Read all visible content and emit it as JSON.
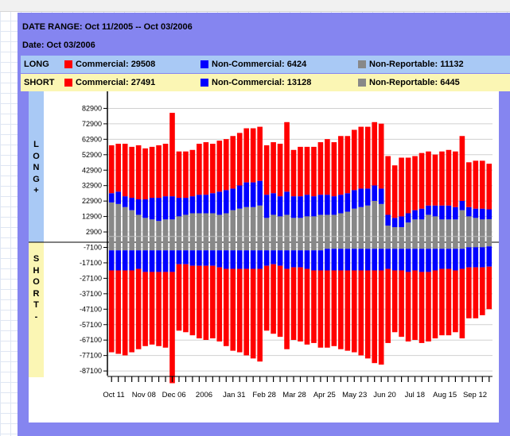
{
  "header": {
    "date_range": "DATE RANGE: Oct 11/2005 -- Oct 03/2006",
    "date": "Date: Oct 03/2006"
  },
  "summary": {
    "long": {
      "label": "LONG",
      "commercial": "Commercial: 29508",
      "non_commercial": "Non-Commercial: 6424",
      "non_reportable": "Non-Reportable: 11132"
    },
    "short": {
      "label": "SHORT",
      "commercial": "Commercial: 27491",
      "non_commercial": "Non-Commercial: 13128",
      "non_reportable": "Non-Reportable: 6445"
    }
  },
  "side_labels": {
    "long": "L\nO\nN\nG\n+",
    "short": "S\nH\nO\nR\nT\n-"
  },
  "colors": {
    "commercial": "#ff0000",
    "non_commercial": "#0000ff",
    "non_reportable": "#888888",
    "long_band": "#a9c9f5",
    "short_band": "#fbf6b4",
    "panel": "#8585f0"
  },
  "chart_data": {
    "type": "bar",
    "stacked": true,
    "grid": true,
    "ylim": [
      -89100,
      92900
    ],
    "y_ticks": [
      82900,
      72900,
      62900,
      52900,
      42900,
      32900,
      22900,
      12900,
      2900,
      -7100,
      -17100,
      -27100,
      -37100,
      -47100,
      -57100,
      -67100,
      -77100,
      -87100
    ],
    "x_tick_labels": [
      "Oct 11",
      "Nov 08",
      "Dec 06",
      "2006",
      "Jan 31",
      "Feb 28",
      "Mar 28",
      "Apr 25",
      "May 23",
      "Jun 20",
      "Jul 18",
      "Aug 15",
      "Sep 12"
    ],
    "series": [
      {
        "name": "Commercial",
        "side": "long",
        "values": [
          31000,
          31000,
          34000,
          33000,
          35000,
          33000,
          33000,
          34000,
          34000,
          54000,
          30000,
          30000,
          30000,
          33000,
          34000,
          32000,
          33000,
          33000,
          34000,
          34000,
          35000,
          35000,
          35000,
          32000,
          33000,
          34000,
          45000,
          30000,
          32000,
          31000,
          32000,
          34000,
          36000,
          35000,
          38000,
          37000,
          39000,
          40000,
          40000,
          41000,
          42000,
          38000,
          34000,
          38000,
          36000,
          35000,
          36000,
          35000,
          33000,
          35000,
          36000,
          36000,
          42000,
          29000,
          31000,
          31000,
          29508
        ]
      },
      {
        "name": "Non-Commercial",
        "side": "long",
        "values": [
          6000,
          8000,
          7000,
          8000,
          10000,
          12000,
          14000,
          15000,
          15000,
          15000,
          12000,
          11000,
          11000,
          12000,
          12000,
          13000,
          15000,
          15000,
          14000,
          15000,
          16000,
          16000,
          16000,
          15000,
          14000,
          13000,
          15000,
          14000,
          14000,
          14000,
          13000,
          13000,
          13000,
          12000,
          12000,
          12000,
          12000,
          12000,
          11000,
          10000,
          10000,
          7000,
          6000,
          7000,
          6000,
          6000,
          7000,
          6000,
          7000,
          9000,
          9000,
          8000,
          6000,
          6000,
          6000,
          7000,
          6424
        ]
      },
      {
        "name": "Non-Reportable",
        "side": "long",
        "values": [
          22000,
          21000,
          19000,
          17000,
          14000,
          12000,
          11000,
          10000,
          11000,
          11000,
          13000,
          14000,
          15000,
          15000,
          15000,
          15000,
          14000,
          15000,
          17000,
          18000,
          19000,
          19000,
          20000,
          12000,
          14000,
          13000,
          14000,
          12000,
          12000,
          13000,
          13000,
          14000,
          14000,
          14000,
          15000,
          16000,
          18000,
          19000,
          20000,
          23000,
          21000,
          7000,
          6000,
          6000,
          9000,
          11000,
          11000,
          14000,
          13000,
          11000,
          11000,
          11000,
          17000,
          13000,
          12000,
          11000,
          11132
        ]
      },
      {
        "name": "Commercial",
        "side": "short",
        "values": [
          -53000,
          -54000,
          -55000,
          -53000,
          -52000,
          -48000,
          -47000,
          -48000,
          -49000,
          -72000,
          -43000,
          -44000,
          -45000,
          -47000,
          -48000,
          -47000,
          -48000,
          -50000,
          -53000,
          -54000,
          -56000,
          -58000,
          -60000,
          -42000,
          -45000,
          -46000,
          -52000,
          -47000,
          -48000,
          -49000,
          -47000,
          -50000,
          -50000,
          -49000,
          -51000,
          -52000,
          -53000,
          -55000,
          -57000,
          -60000,
          -61000,
          -48000,
          -40000,
          -43000,
          -45000,
          -45000,
          -46000,
          -45000,
          -44000,
          -43000,
          -43000,
          -40000,
          -45000,
          -33000,
          -33000,
          -31000,
          -27491
        ]
      },
      {
        "name": "Non-Commercial",
        "side": "short",
        "values": [
          -13000,
          -13000,
          -13000,
          -13000,
          -12000,
          -14000,
          -14000,
          -14000,
          -14000,
          -14000,
          -9000,
          -9000,
          -10000,
          -10000,
          -10000,
          -10000,
          -11000,
          -12000,
          -12000,
          -12000,
          -12000,
          -12000,
          -12000,
          -10000,
          -9000,
          -10000,
          -12000,
          -11000,
          -11000,
          -12000,
          -13000,
          -13000,
          -14000,
          -14000,
          -14000,
          -14000,
          -14000,
          -14000,
          -14000,
          -14000,
          -14000,
          -13000,
          -14000,
          -14000,
          -15000,
          -14000,
          -15000,
          -15000,
          -14000,
          -13000,
          -13000,
          -14000,
          -13000,
          -13000,
          -13000,
          -13000,
          -13128
        ]
      },
      {
        "name": "Non-Reportable",
        "side": "short",
        "values": [
          -9000,
          -9000,
          -9000,
          -9000,
          -9000,
          -9000,
          -9000,
          -9000,
          -9000,
          -9000,
          -9000,
          -9000,
          -9000,
          -9000,
          -9000,
          -9000,
          -9000,
          -9000,
          -9000,
          -9000,
          -9000,
          -9000,
          -9000,
          -9000,
          -9000,
          -9000,
          -9000,
          -9000,
          -9000,
          -9000,
          -9000,
          -9000,
          -8000,
          -8000,
          -8000,
          -8000,
          -8000,
          -8000,
          -8000,
          -8000,
          -8000,
          -8000,
          -8000,
          -8000,
          -8000,
          -8000,
          -8000,
          -8000,
          -8000,
          -8000,
          -8000,
          -8000,
          -8000,
          -7000,
          -7000,
          -7000,
          -6445
        ]
      }
    ]
  }
}
